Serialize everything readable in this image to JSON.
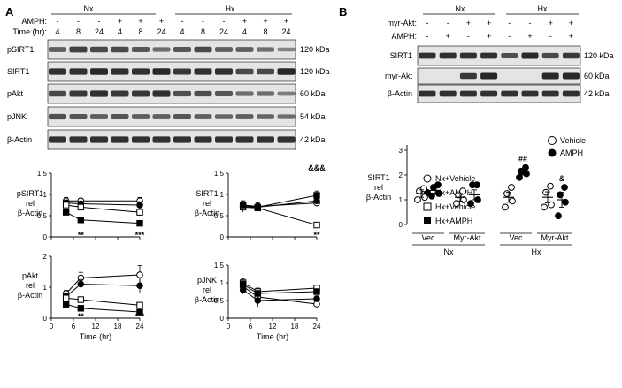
{
  "panelA": {
    "letter": "A",
    "groups": [
      "Nx",
      "Hx"
    ],
    "row_labels": [
      "AMPH:",
      "Time (hr):"
    ],
    "amph_row": [
      "-",
      "-",
      "-",
      "+",
      "+",
      "+",
      "-",
      "-",
      "-",
      "+",
      "+",
      "+"
    ],
    "time_row": [
      "4",
      "8",
      "24",
      "4",
      "8",
      "24",
      "4",
      "8",
      "24",
      "4",
      "8",
      "24"
    ],
    "blots": [
      {
        "label": "pSIRT1",
        "kda": "120 kDa",
        "intensity": [
          0.55,
          0.75,
          0.7,
          0.7,
          0.6,
          0.45,
          0.6,
          0.7,
          0.55,
          0.55,
          0.45,
          0.3
        ]
      },
      {
        "label": "SIRT1",
        "kda": "120 kDa",
        "intensity": [
          0.85,
          0.85,
          0.9,
          0.85,
          0.85,
          0.9,
          0.8,
          0.85,
          0.85,
          0.7,
          0.7,
          0.9
        ]
      },
      {
        "label": "pAkt",
        "kda": "60 kDa",
        "intensity": [
          0.7,
          0.8,
          0.85,
          0.8,
          0.8,
          0.85,
          0.65,
          0.65,
          0.6,
          0.45,
          0.45,
          0.35
        ]
      },
      {
        "label": "pJNK",
        "kda": "54 kDa",
        "intensity": [
          0.65,
          0.6,
          0.55,
          0.6,
          0.55,
          0.55,
          0.6,
          0.55,
          0.5,
          0.55,
          0.5,
          0.45
        ]
      },
      {
        "label": "β-Actin",
        "kda": "42 kDa",
        "intensity": [
          0.85,
          0.85,
          0.85,
          0.85,
          0.85,
          0.85,
          0.85,
          0.85,
          0.85,
          0.85,
          0.85,
          0.85
        ]
      }
    ],
    "legend": [
      "Nx+Vehicle",
      "Nx+AMPH",
      "Hx+Vehicle",
      "Hx+AMPH"
    ],
    "xlabel": "Time (hr)"
  },
  "panelB": {
    "letter": "B",
    "groups": [
      "Nx",
      "Hx"
    ],
    "row_labels": [
      "myr-Akt:",
      "AMPH:"
    ],
    "myr_row": [
      "-",
      "-",
      "+",
      "+",
      "-",
      "-",
      "+",
      "+"
    ],
    "amph_row": [
      "-",
      "+",
      "-",
      "+",
      "-",
      "+",
      "-",
      "+"
    ],
    "blots": [
      {
        "label": "SIRT1",
        "kda": "120 kDa",
        "intensity": [
          0.85,
          0.85,
          0.85,
          0.85,
          0.65,
          0.9,
          0.7,
          0.8
        ]
      },
      {
        "label": "myr-Akt",
        "kda": "60 kDa",
        "intensity": [
          0,
          0,
          0.8,
          0.9,
          0,
          0,
          0.9,
          0.9
        ]
      },
      {
        "label": "β-Actin",
        "kda": "42 kDa",
        "intensity": [
          0.85,
          0.85,
          0.85,
          0.85,
          0.85,
          0.85,
          0.85,
          0.85
        ]
      }
    ],
    "legend": [
      "Vehicle",
      "AMPH"
    ],
    "x_groups": [
      "Vec",
      "Myr-Akt",
      "Vec",
      "Myr-Akt"
    ],
    "x_super": [
      "Nx",
      "Hx"
    ]
  },
  "chart_data": [
    {
      "type": "line",
      "ylabel": "pSIRT1 rel β-Actin",
      "x": [
        4,
        8,
        24
      ],
      "ylim": [
        0,
        1.5
      ],
      "yticks": [
        "0",
        "0.5",
        "1",
        "1.5"
      ],
      "series": [
        {
          "name": "Nx+Vehicle",
          "values": [
            0.85,
            0.85,
            0.85
          ],
          "err": [
            0.08,
            0.06,
            0.08
          ]
        },
        {
          "name": "Nx+AMPH",
          "values": [
            0.8,
            0.78,
            0.75
          ],
          "err": [
            0.07,
            0.06,
            0.08
          ]
        },
        {
          "name": "Hx+Vehicle",
          "values": [
            0.75,
            0.7,
            0.58
          ],
          "err": [
            0.06,
            0.06,
            0.08
          ]
        },
        {
          "name": "Hx+AMPH",
          "values": [
            0.58,
            0.4,
            0.32
          ],
          "err": [
            0.05,
            0.04,
            0.03
          ]
        }
      ],
      "annotations": [
        {
          "x": 8,
          "text": "**"
        },
        {
          "x": 24,
          "text": "***"
        }
      ]
    },
    {
      "type": "line",
      "ylabel": "SIRT1 rel β-Actin",
      "x": [
        4,
        8,
        24
      ],
      "ylim": [
        0,
        1.5
      ],
      "yticks": [
        "0",
        "0.5",
        "1",
        "1.5"
      ],
      "series": [
        {
          "name": "Nx+Vehicle",
          "values": [
            0.75,
            0.72,
            0.8
          ],
          "err": [
            0.1,
            0.08,
            0.08
          ]
        },
        {
          "name": "Nx+AMPH",
          "values": [
            0.72,
            0.7,
            0.85
          ],
          "err": [
            0.1,
            0.07,
            0.08
          ]
        },
        {
          "name": "Hx+Vehicle",
          "values": [
            0.7,
            0.68,
            0.28
          ],
          "err": [
            0.12,
            0.06,
            0.04
          ]
        },
        {
          "name": "Hx+AMPH",
          "values": [
            0.75,
            0.7,
            0.98
          ],
          "err": [
            0.1,
            0.07,
            0.1
          ]
        }
      ],
      "annotations": [
        {
          "x": 24,
          "text": "&&&",
          "pos": "top"
        },
        {
          "x": 24,
          "text": "**",
          "pos": "bottom"
        }
      ]
    },
    {
      "type": "line",
      "ylabel": "pAkt rel β-Actin",
      "x": [
        4,
        8,
        24
      ],
      "ylim": [
        0,
        2
      ],
      "yticks": [
        "0",
        "1",
        "2"
      ],
      "series": [
        {
          "name": "Nx+Vehicle",
          "values": [
            0.8,
            1.3,
            1.4
          ],
          "err": [
            0.1,
            0.18,
            0.3
          ]
        },
        {
          "name": "Nx+AMPH",
          "values": [
            0.7,
            1.1,
            1.05
          ],
          "err": [
            0.1,
            0.15,
            0.25
          ]
        },
        {
          "name": "Hx+Vehicle",
          "values": [
            0.65,
            0.6,
            0.42
          ],
          "err": [
            0.06,
            0.05,
            0.04
          ]
        },
        {
          "name": "Hx+AMPH",
          "values": [
            0.45,
            0.32,
            0.2
          ],
          "err": [
            0.04,
            0.04,
            0.03
          ]
        }
      ],
      "annotations": [
        {
          "x": 8,
          "text": "**"
        },
        {
          "x": 24,
          "text": "***"
        }
      ]
    },
    {
      "type": "line",
      "ylabel": "pJNK rel β-Actin",
      "x": [
        4,
        8,
        24
      ],
      "ylim": [
        0,
        1.5
      ],
      "yticks": [
        "0",
        "0.5",
        "1",
        "1.5"
      ],
      "series": [
        {
          "name": "Nx+Vehicle",
          "values": [
            0.9,
            0.6,
            0.4
          ],
          "err": [
            0.15,
            0.15,
            0.04
          ]
        },
        {
          "name": "Nx+AMPH",
          "values": [
            0.8,
            0.5,
            0.55
          ],
          "err": [
            0.12,
            0.18,
            0.08
          ]
        },
        {
          "name": "Hx+Vehicle",
          "values": [
            1.0,
            0.75,
            0.85
          ],
          "err": [
            0.12,
            0.1,
            0.08
          ]
        },
        {
          "name": "Hx+AMPH",
          "values": [
            0.95,
            0.7,
            0.75
          ],
          "err": [
            0.1,
            0.08,
            0.08
          ]
        }
      ],
      "xticks": [
        "0",
        "6",
        "12",
        "18",
        "24"
      ]
    },
    {
      "type": "scatter",
      "ylabel": "SIRT1 rel β-Actin",
      "ylim": [
        0,
        3
      ],
      "yticks": [
        "0",
        "1",
        "2",
        "3"
      ],
      "groups": [
        {
          "name": "Nx Vec Vehicle",
          "mean": 1.25,
          "sem": 0.15,
          "points": [
            1.0,
            1.1,
            1.35,
            1.45
          ]
        },
        {
          "name": "Nx Vec AMPH",
          "mean": 1.38,
          "sem": 0.12,
          "points": [
            1.15,
            1.25,
            1.5,
            1.6
          ]
        },
        {
          "name": "Nx Myr-Akt Vehicle",
          "mean": 1.1,
          "sem": 0.15,
          "points": [
            0.85,
            1.0,
            1.2,
            1.35
          ]
        },
        {
          "name": "Nx Myr-Akt AMPH",
          "mean": 1.2,
          "sem": 0.2,
          "points": [
            0.85,
            1.0,
            1.6,
            1.6
          ]
        },
        {
          "name": "Hx Vec Vehicle",
          "mean": 1.1,
          "sem": 0.2,
          "points": [
            0.7,
            0.95,
            1.25,
            1.5
          ]
        },
        {
          "name": "Hx Vec AMPH",
          "mean": 2.1,
          "sem": 0.1,
          "points": [
            1.9,
            2.05,
            2.15,
            2.3
          ]
        },
        {
          "name": "Hx Myr-Akt Vehicle",
          "mean": 1.1,
          "sem": 0.22,
          "points": [
            0.7,
            0.8,
            1.3,
            1.55
          ]
        },
        {
          "name": "Hx Myr-Akt AMPH",
          "mean": 1.0,
          "sem": 0.3,
          "points": [
            0.35,
            0.9,
            1.2,
            1.5
          ]
        }
      ],
      "annotations": [
        {
          "group": 5,
          "text": "##"
        },
        {
          "group": 7,
          "text": "&"
        }
      ]
    }
  ]
}
